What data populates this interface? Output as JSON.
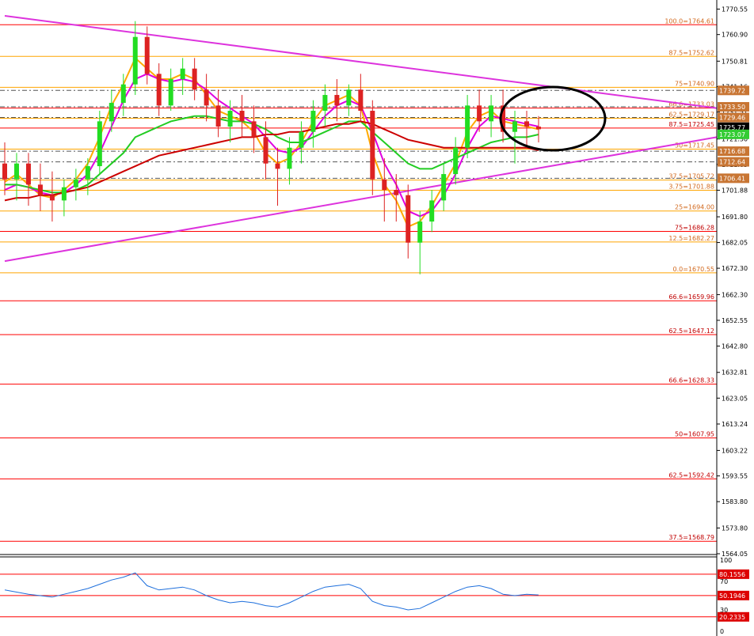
{
  "chart_data": {
    "type": "candlestick",
    "price_axis": {
      "ticks": [
        "1770.55",
        "1760.90",
        "1750.81",
        "1741.16",
        "1731.51",
        "1721.30",
        "1711.65",
        "1701.88",
        "1691.80",
        "1682.05",
        "1672.30",
        "1662.30",
        "1652.55",
        "1642.80",
        "1632.81",
        "1623.05",
        "1613.24",
        "1603.22",
        "1593.55",
        "1583.80",
        "1573.80",
        "1564.05"
      ],
      "range": [
        1564.05,
        1774.0
      ]
    },
    "fib_levels": [
      {
        "label": "100.0=1764.61",
        "value": 1764.61,
        "color": "#ff0000",
        "label_color": "#d2691e"
      },
      {
        "label": "87.5=1752.62",
        "value": 1752.62,
        "color": "#ffa500",
        "label_color": "#d2691e"
      },
      {
        "label": "75=1740.90",
        "value": 1740.9,
        "color": "#ffa500",
        "label_color": "#d2691e"
      },
      {
        "label": "66.6=1733.03",
        "value": 1733.03,
        "color": "#ff0000",
        "label_color": "#d2691e"
      },
      {
        "label": "62.5=1729.17",
        "value": 1729.17,
        "color": "#ffa500",
        "label_color": "#d2691e"
      },
      {
        "label": "87.5=1725.45",
        "value": 1725.45,
        "color": "#ff0000",
        "label_color": "#c00000"
      },
      {
        "label": "50=1717.45",
        "value": 1717.45,
        "color": "#ffa500",
        "label_color": "#d2691e"
      },
      {
        "label": "37.5=1705.72",
        "value": 1705.72,
        "color": "#ffa500",
        "label_color": "#d2691e"
      },
      {
        "label": "3.75=1701.88",
        "value": 1701.88,
        "color": "#ffa500",
        "label_color": "#d2691e"
      },
      {
        "label": "25=1694.00",
        "value": 1694.0,
        "color": "#ffa500",
        "label_color": "#d2691e"
      },
      {
        "label": "75=1686.28",
        "value": 1686.28,
        "color": "#ff0000",
        "label_color": "#c00000"
      },
      {
        "label": "12.5=1682.27",
        "value": 1682.27,
        "color": "#ffa500",
        "label_color": "#d2691e"
      },
      {
        "label": "0.0=1670.55",
        "value": 1670.55,
        "color": "#ffa500",
        "label_color": "#d2691e"
      },
      {
        "label": "66.6=1659.96",
        "value": 1659.96,
        "color": "#ff0000",
        "label_color": "#c00000"
      },
      {
        "label": "62.5=1647.12",
        "value": 1647.12,
        "color": "#ff0000",
        "label_color": "#c00000"
      },
      {
        "label": "66.6=1628.33",
        "value": 1628.33,
        "color": "#ff0000",
        "label_color": "#c00000"
      },
      {
        "label": "50=1607.95",
        "value": 1607.95,
        "color": "#ff0000",
        "label_color": "#c00000"
      },
      {
        "label": "62.5=1592.42",
        "value": 1592.42,
        "color": "#ff0000",
        "label_color": "#c00000"
      },
      {
        "label": "37.5=1568.79",
        "value": 1568.79,
        "color": "#ff0000",
        "label_color": "#c00000"
      }
    ],
    "price_badges": [
      {
        "text": "1739.72",
        "value": 1739.72,
        "bg": "#c87533",
        "fg": "#ffffff"
      },
      {
        "text": "1733.50",
        "value": 1733.5,
        "bg": "#c87533",
        "fg": "#ffffff"
      },
      {
        "text": "1729.46",
        "value": 1729.46,
        "bg": "#c87533",
        "fg": "#ffffff"
      },
      {
        "text": "1725.77",
        "value": 1725.77,
        "bg": "#000000",
        "fg": "#ffffff"
      },
      {
        "text": "1723.07",
        "value": 1723.07,
        "bg": "#33cc33",
        "fg": "#ffffff"
      },
      {
        "text": "1716.68",
        "value": 1716.68,
        "bg": "#c87533",
        "fg": "#ffffff"
      },
      {
        "text": "1712.64",
        "value": 1712.64,
        "bg": "#c87533",
        "fg": "#ffffff"
      },
      {
        "text": "1706.41",
        "value": 1706.41,
        "bg": "#c87533",
        "fg": "#ffffff"
      }
    ],
    "dashed_levels": [
      1739.72,
      1733.5,
      1729.46,
      1716.68,
      1712.64,
      1706.41
    ],
    "candles": [
      [
        1712,
        1720,
        1700,
        1706
      ],
      [
        1706,
        1716,
        1698,
        1712
      ],
      [
        1712,
        1716,
        1696,
        1704
      ],
      [
        1704,
        1712,
        1694,
        1700
      ],
      [
        1700,
        1709,
        1690,
        1698
      ],
      [
        1698,
        1706,
        1692,
        1703
      ],
      [
        1703,
        1710,
        1698,
        1706
      ],
      [
        1706,
        1714,
        1700,
        1711
      ],
      [
        1711,
        1732,
        1708,
        1728
      ],
      [
        1728,
        1740,
        1724,
        1735
      ],
      [
        1735,
        1746,
        1730,
        1742
      ],
      [
        1742,
        1766,
        1738,
        1760
      ],
      [
        1760,
        1764,
        1742,
        1746
      ],
      [
        1746,
        1750,
        1730,
        1734
      ],
      [
        1734,
        1748,
        1732,
        1744
      ],
      [
        1744,
        1752,
        1738,
        1748
      ],
      [
        1748,
        1752,
        1736,
        1740
      ],
      [
        1740,
        1746,
        1728,
        1734
      ],
      [
        1734,
        1740,
        1722,
        1726
      ],
      [
        1726,
        1736,
        1720,
        1732
      ],
      [
        1732,
        1738,
        1722,
        1728
      ],
      [
        1728,
        1734,
        1716,
        1722
      ],
      [
        1722,
        1728,
        1706,
        1712
      ],
      [
        1712,
        1718,
        1696,
        1710
      ],
      [
        1710,
        1722,
        1704,
        1718
      ],
      [
        1718,
        1728,
        1712,
        1724
      ],
      [
        1724,
        1736,
        1718,
        1732
      ],
      [
        1732,
        1742,
        1726,
        1738
      ],
      [
        1738,
        1744,
        1728,
        1734
      ],
      [
        1734,
        1742,
        1730,
        1740
      ],
      [
        1740,
        1746,
        1728,
        1732
      ],
      [
        1732,
        1736,
        1700,
        1706
      ],
      [
        1706,
        1714,
        1690,
        1702
      ],
      [
        1702,
        1708,
        1690,
        1700
      ],
      [
        1700,
        1704,
        1676,
        1682
      ],
      [
        1682,
        1694,
        1670,
        1690
      ],
      [
        1690,
        1702,
        1686,
        1698
      ],
      [
        1698,
        1712,
        1694,
        1708
      ],
      [
        1708,
        1722,
        1704,
        1718
      ],
      [
        1718,
        1738,
        1714,
        1734
      ],
      [
        1734,
        1740,
        1724,
        1728
      ],
      [
        1728,
        1738,
        1722,
        1734
      ],
      [
        1734,
        1740,
        1720,
        1724
      ],
      [
        1724,
        1732,
        1712,
        1728
      ],
      [
        1728,
        1732,
        1718,
        1726
      ],
      [
        1726,
        1730,
        1720,
        1725
      ]
    ],
    "moving_averages": [
      {
        "color": "#ffaa00",
        "values": [
          1705,
          1708,
          1704,
          1700,
          1699,
          1702,
          1706,
          1712,
          1722,
          1734,
          1742,
          1752,
          1748,
          1744,
          1744,
          1746,
          1744,
          1738,
          1732,
          1730,
          1728,
          1724,
          1716,
          1712,
          1714,
          1720,
          1728,
          1734,
          1736,
          1738,
          1734,
          1716,
          1704,
          1698,
          1688,
          1690,
          1696,
          1704,
          1712,
          1724,
          1730,
          1732,
          1728,
          1727,
          1726,
          1725
        ]
      },
      {
        "color": "#e000e0",
        "values": [
          1702,
          1704,
          1703,
          1701,
          1700,
          1701,
          1704,
          1708,
          1716,
          1726,
          1736,
          1744,
          1746,
          1744,
          1743,
          1744,
          1743,
          1740,
          1736,
          1733,
          1730,
          1727,
          1722,
          1717,
          1716,
          1718,
          1724,
          1730,
          1734,
          1736,
          1734,
          1724,
          1712,
          1704,
          1694,
          1692,
          1694,
          1700,
          1708,
          1718,
          1726,
          1730,
          1729,
          1728,
          1727,
          1726
        ]
      },
      {
        "color": "#22cc22",
        "values": [
          1704,
          1704,
          1703,
          1702,
          1701,
          1701,
          1702,
          1704,
          1708,
          1712,
          1716,
          1722,
          1724,
          1726,
          1728,
          1729,
          1730,
          1730,
          1729,
          1728,
          1728,
          1727,
          1725,
          1722,
          1720,
          1720,
          1722,
          1724,
          1726,
          1728,
          1728,
          1724,
          1720,
          1716,
          1712,
          1710,
          1710,
          1712,
          1714,
          1716,
          1718,
          1720,
          1721,
          1722,
          1722,
          1723
        ]
      },
      {
        "color": "#cc0000",
        "values": [
          1698,
          1699,
          1699,
          1700,
          1700,
          1701,
          1702,
          1703,
          1705,
          1707,
          1709,
          1711,
          1713,
          1715,
          1716,
          1717,
          1718,
          1719,
          1720,
          1721,
          1722,
          1722,
          1723,
          1723,
          1724,
          1724,
          1725,
          1726,
          1727,
          1727,
          1728,
          1727,
          1725,
          1723,
          1721,
          1720,
          1719,
          1718,
          1718,
          1718,
          1718,
          1718,
          1718,
          1718,
          1718,
          1717
        ]
      }
    ],
    "trendlines": [
      {
        "color": "#dd33dd",
        "from": [
          0,
          1768
        ],
        "to": [
          45,
          1733
        ]
      },
      {
        "color": "#dd33dd",
        "from": [
          0,
          1675
        ],
        "to": [
          45,
          1722
        ]
      }
    ],
    "oscillator": {
      "ticks": [
        "100",
        "70",
        "30",
        "0"
      ],
      "range": [
        0,
        100
      ],
      "levels": [
        {
          "label": "80.1556",
          "value": 80.1556,
          "color": "#ff0000"
        },
        {
          "label": "50.1946",
          "value": 50.1946,
          "color": "#ff0000"
        },
        {
          "label": "20.2335",
          "value": 20.2335,
          "color": "#ff0000"
        }
      ],
      "line_color": "#1e6fdc",
      "values": [
        58,
        55,
        52,
        50,
        48,
        52,
        56,
        60,
        66,
        72,
        76,
        82,
        64,
        58,
        60,
        62,
        58,
        50,
        44,
        40,
        42,
        40,
        36,
        34,
        40,
        48,
        56,
        62,
        64,
        66,
        60,
        42,
        36,
        34,
        30,
        32,
        40,
        48,
        56,
        62,
        64,
        60,
        52,
        50,
        52,
        51
      ]
    }
  }
}
